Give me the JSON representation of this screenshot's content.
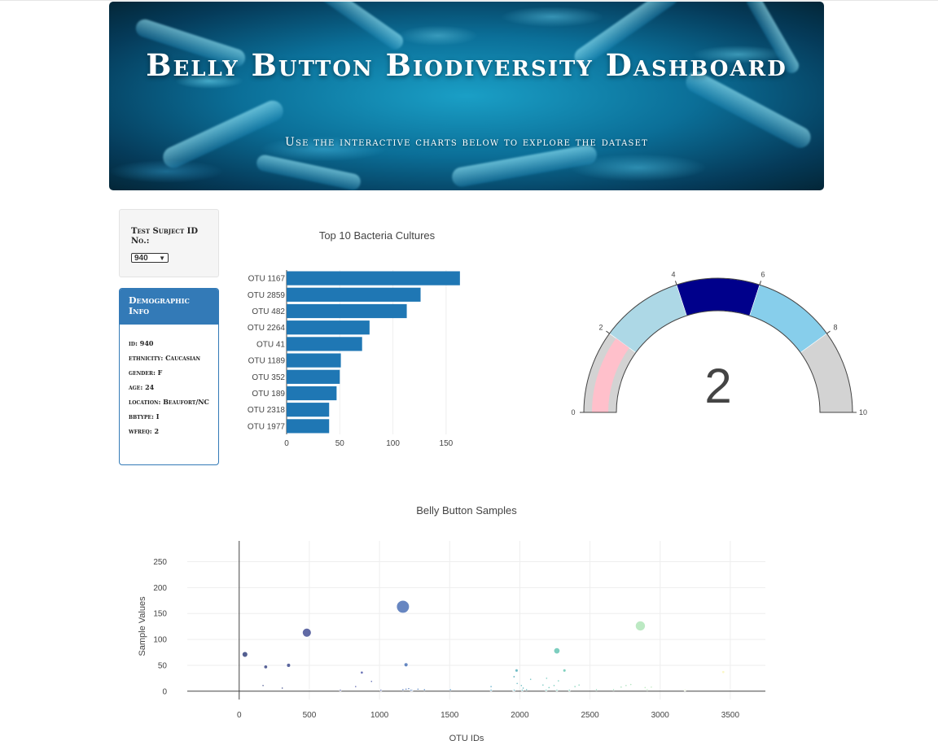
{
  "header": {
    "title": "Belly Button Biodiversity Dashboard",
    "subtitle": "Use the interactive charts below to explore the dataset"
  },
  "selector": {
    "label": "Test Subject ID No.:",
    "selected": "940"
  },
  "demographics": {
    "heading": "Demographic Info",
    "rows": [
      "id: 940",
      "ethnicity: Caucasian",
      "gender: F",
      "age: 24",
      "location: Beaufort/NC",
      "bbtype: I",
      "wfreq: 2"
    ]
  },
  "bar_chart": {
    "type": "bar",
    "orientation": "horizontal",
    "title": "Top 10 Bacteria Cultures",
    "categories": [
      "OTU 1167",
      "OTU 2859",
      "OTU 482",
      "OTU 2264",
      "OTU 41",
      "OTU 1189",
      "OTU 352",
      "OTU 189",
      "OTU 2318",
      "OTU 1977"
    ],
    "values": [
      163,
      126,
      113,
      78,
      71,
      51,
      50,
      47,
      40,
      40
    ],
    "xticks": [
      0,
      50,
      100,
      150
    ],
    "xlim": [
      0,
      170
    ],
    "color": "#1f77b4"
  },
  "gauge": {
    "type": "gauge",
    "value": 2,
    "range": [
      0,
      10
    ],
    "ticks": [
      0,
      2,
      4,
      6,
      8,
      10
    ],
    "steps": [
      {
        "range": [
          0,
          2
        ],
        "color": "#d3d3d3"
      },
      {
        "range": [
          2,
          4
        ],
        "color": "#add8e6"
      },
      {
        "range": [
          4,
          6
        ],
        "color": "#00008b"
      },
      {
        "range": [
          6,
          8
        ],
        "color": "#87ceeb"
      },
      {
        "range": [
          8,
          10
        ],
        "color": "#d3d3d3"
      }
    ],
    "bar_color": "#ffc0cb"
  },
  "chart_data": {
    "type": "scatter",
    "title": "Belly Button Samples",
    "xlabel": "OTU IDs",
    "ylabel": "Sample Values",
    "xlim": [
      -370,
      3750
    ],
    "ylim": [
      -16,
      290
    ],
    "xticks": [
      0,
      500,
      1000,
      1500,
      2000,
      2500,
      3000,
      3500
    ],
    "yticks": [
      0,
      50,
      100,
      150,
      200,
      250
    ],
    "points": [
      {
        "x": 1167,
        "y": 163
      },
      {
        "x": 2859,
        "y": 126
      },
      {
        "x": 482,
        "y": 113
      },
      {
        "x": 2264,
        "y": 78
      },
      {
        "x": 41,
        "y": 71
      },
      {
        "x": 1189,
        "y": 51
      },
      {
        "x": 352,
        "y": 50
      },
      {
        "x": 189,
        "y": 47
      },
      {
        "x": 2318,
        "y": 40
      },
      {
        "x": 1977,
        "y": 40
      },
      {
        "x": 3450,
        "y": 37
      },
      {
        "x": 874,
        "y": 36
      },
      {
        "x": 1959,
        "y": 28
      },
      {
        "x": 2191,
        "y": 25
      },
      {
        "x": 2077,
        "y": 23
      },
      {
        "x": 2275,
        "y": 20
      },
      {
        "x": 943,
        "y": 19
      },
      {
        "x": 1981,
        "y": 15
      },
      {
        "x": 2165,
        "y": 12
      },
      {
        "x": 2422,
        "y": 12
      },
      {
        "x": 2791,
        "y": 13
      },
      {
        "x": 2244,
        "y": 11
      },
      {
        "x": 2757,
        "y": 11
      },
      {
        "x": 2011,
        "y": 11
      },
      {
        "x": 2722,
        "y": 8
      },
      {
        "x": 2393,
        "y": 9
      },
      {
        "x": 1795,
        "y": 9
      },
      {
        "x": 2893,
        "y": 7
      },
      {
        "x": 2937,
        "y": 8
      },
      {
        "x": 170,
        "y": 11
      },
      {
        "x": 830,
        "y": 9
      },
      {
        "x": 307,
        "y": 6
      },
      {
        "x": 2208,
        "y": 7
      },
      {
        "x": 1208,
        "y": 5
      },
      {
        "x": 1274,
        "y": 4
      },
      {
        "x": 1320,
        "y": 3
      },
      {
        "x": 2024,
        "y": 6
      },
      {
        "x": 1505,
        "y": 3
      },
      {
        "x": 1189,
        "y": 4
      },
      {
        "x": 2546,
        "y": 3
      },
      {
        "x": 2908,
        "y": 3
      },
      {
        "x": 3177,
        "y": 2
      },
      {
        "x": 2668,
        "y": 3
      },
      {
        "x": 1167,
        "y": 3
      },
      {
        "x": 1955,
        "y": 2
      },
      {
        "x": 2048,
        "y": 3
      },
      {
        "x": 1232,
        "y": 2
      },
      {
        "x": 2264,
        "y": 2
      },
      {
        "x": 2188,
        "y": 2
      },
      {
        "x": 1960,
        "y": 2
      },
      {
        "x": 721,
        "y": 2
      },
      {
        "x": 1010,
        "y": 2
      },
      {
        "x": 1225,
        "y": 2
      },
      {
        "x": 2017,
        "y": 2
      },
      {
        "x": 1795,
        "y": 2
      },
      {
        "x": 2353,
        "y": 2
      }
    ],
    "colorscale": "Earth"
  }
}
